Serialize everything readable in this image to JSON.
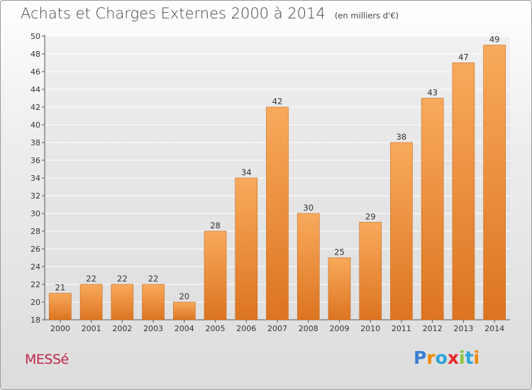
{
  "header": {
    "title": "Achats et Charges Externes 2000 à 2014",
    "unit": "(en milliers d'€)"
  },
  "commune": "MESSé",
  "brand": {
    "name": "Proxiti",
    "letter_colors": [
      "#3a7fd5",
      "#f08a00",
      "#2aa3d8",
      "#e8262a",
      "#8cc43c",
      "#2aa3d8",
      "#f08a00"
    ]
  },
  "colors": {
    "bar_light": "#f8aa5c",
    "bar_dark": "#dc7420",
    "axis": "#555555",
    "grid": "#ffffff"
  },
  "chart_data": {
    "type": "bar",
    "categories": [
      "2000",
      "2001",
      "2002",
      "2003",
      "2004",
      "2005",
      "2006",
      "2007",
      "2008",
      "2009",
      "2010",
      "2011",
      "2012",
      "2013",
      "2014"
    ],
    "values": [
      21,
      22,
      22,
      22,
      20,
      28,
      34,
      42,
      30,
      25,
      29,
      38,
      43,
      47,
      49
    ],
    "ylim": [
      18,
      50
    ],
    "yticks": [
      18,
      20,
      22,
      24,
      26,
      28,
      30,
      32,
      34,
      36,
      38,
      40,
      42,
      44,
      46,
      48,
      50
    ],
    "grid": true,
    "data_labels": true
  }
}
